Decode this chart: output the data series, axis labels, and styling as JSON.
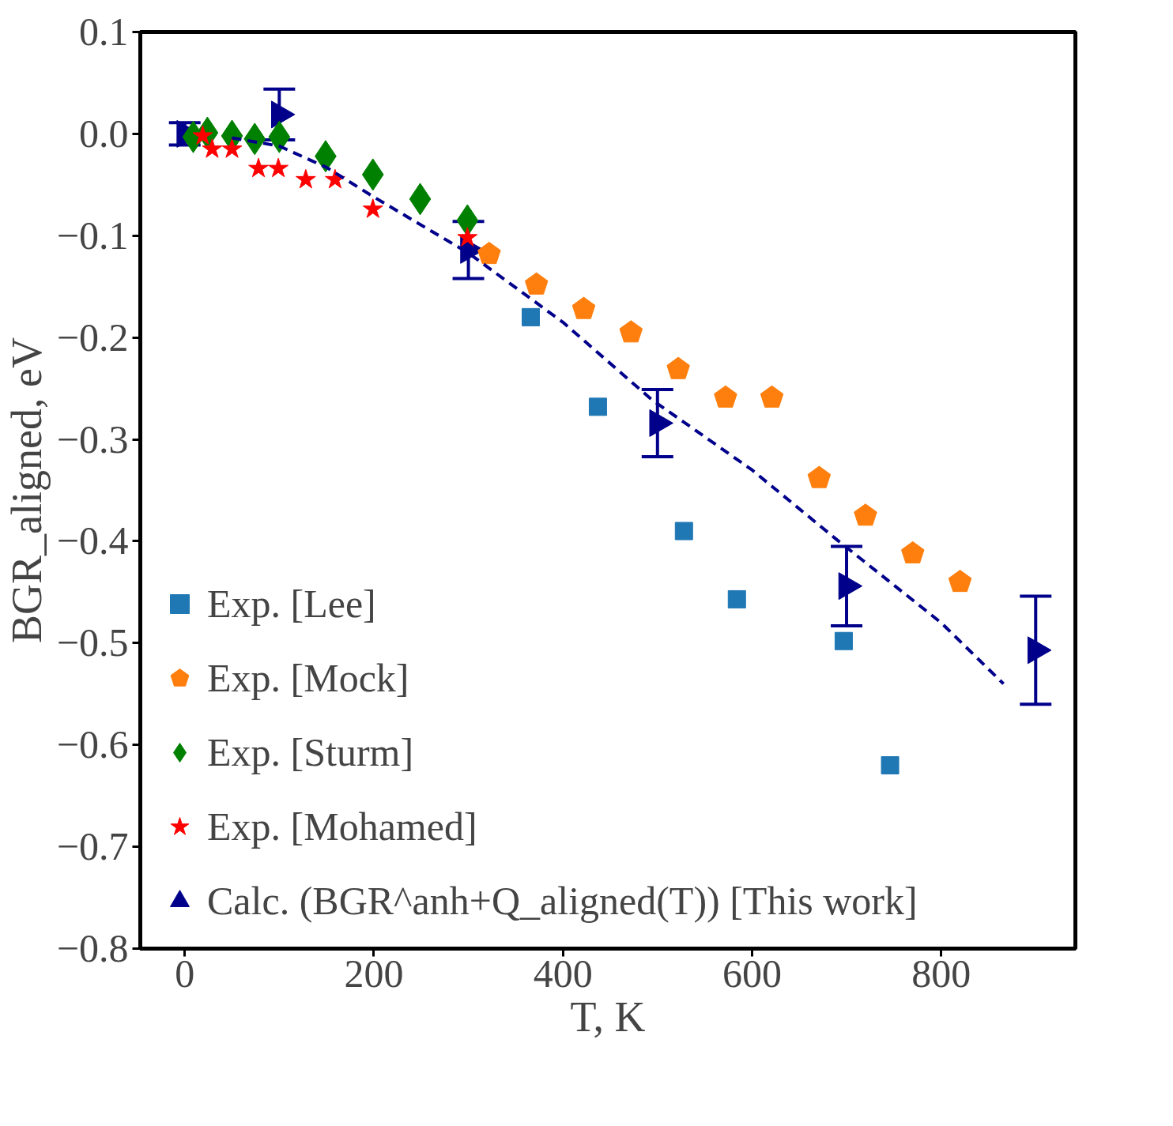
{
  "chart_data": {
    "type": "scatter",
    "xlabel": "T, K",
    "ylabel": "BGR_aligned, eV",
    "xlim": [
      -47,
      942
    ],
    "ylim": [
      -0.8,
      0.1
    ],
    "xticks": [
      0,
      200,
      400,
      600,
      800
    ],
    "yticks": [
      {
        "value": -0.8,
        "label": "−0.8"
      },
      {
        "value": -0.7,
        "label": "−0.7"
      },
      {
        "value": -0.6,
        "label": "−0.6"
      },
      {
        "value": -0.5,
        "label": "−0.5"
      },
      {
        "value": -0.4,
        "label": "−0.4"
      },
      {
        "value": -0.3,
        "label": "−0.3"
      },
      {
        "value": -0.2,
        "label": "−0.2"
      },
      {
        "value": -0.1,
        "label": "−0.1"
      },
      {
        "value": 0.0,
        "label": "0.0"
      },
      {
        "value": 0.1,
        "label": "0.1"
      }
    ],
    "grid": false,
    "legend": "bottom left",
    "series": [
      {
        "name": "Exp. [Lee]",
        "color": "#1f77b4",
        "marker": "square",
        "x": [
          366,
          437,
          528,
          584,
          697,
          746
        ],
        "values": [
          -0.18,
          -0.268,
          -0.39,
          -0.457,
          -0.498,
          -0.62
        ]
      },
      {
        "name": "Exp. [Mock]",
        "color": "#ff7f0e",
        "x": [
          322,
          372,
          422,
          472,
          522,
          572,
          621,
          671,
          720,
          770,
          820
        ],
        "values": [
          -0.118,
          -0.148,
          -0.172,
          -0.195,
          -0.231,
          -0.259,
          -0.259,
          -0.338,
          -0.375,
          -0.412,
          -0.44
        ]
      },
      {
        "name": "Exp. [Sturm]",
        "color": "#008000",
        "marker": "diamond",
        "x": [
          9,
          24,
          50,
          74,
          100,
          149,
          199,
          249,
          299
        ],
        "values": [
          -0.003,
          0.001,
          -0.002,
          -0.005,
          -0.003,
          -0.022,
          -0.04,
          -0.064,
          -0.085
        ]
      },
      {
        "name": "Exp. [Mohamed]",
        "color": "#ff0000",
        "marker": "star",
        "x": [
          19,
          29,
          50,
          78,
          99,
          128,
          159,
          199,
          299
        ],
        "values": [
          -0.002,
          -0.015,
          -0.015,
          -0.034,
          -0.034,
          -0.045,
          -0.045,
          -0.074,
          -0.102
        ]
      },
      {
        "type": "line",
        "color": "#00008b",
        "line_style": "dashed",
        "marker": "none",
        "x": [
          50,
          100,
          150,
          200,
          300,
          400,
          494,
          600,
          689,
          800,
          866
        ],
        "values": [
          -0.004,
          -0.012,
          -0.033,
          -0.062,
          -0.117,
          -0.185,
          -0.261,
          -0.33,
          -0.398,
          -0.48,
          -0.54
        ]
      },
      {
        "name": "Calc. (BGR^anh+Q_aligned(T)) [This work]",
        "color": "#00008b",
        "marker": "triangle",
        "x": [
          0,
          100,
          300,
          500,
          700,
          900
        ],
        "values": [
          0,
          0.019,
          -0.114,
          -0.284,
          -0.444,
          -0.507
        ],
        "errors": [
          0.011,
          0.025,
          0.028,
          0.033,
          0.039,
          0.053
        ]
      }
    ]
  }
}
